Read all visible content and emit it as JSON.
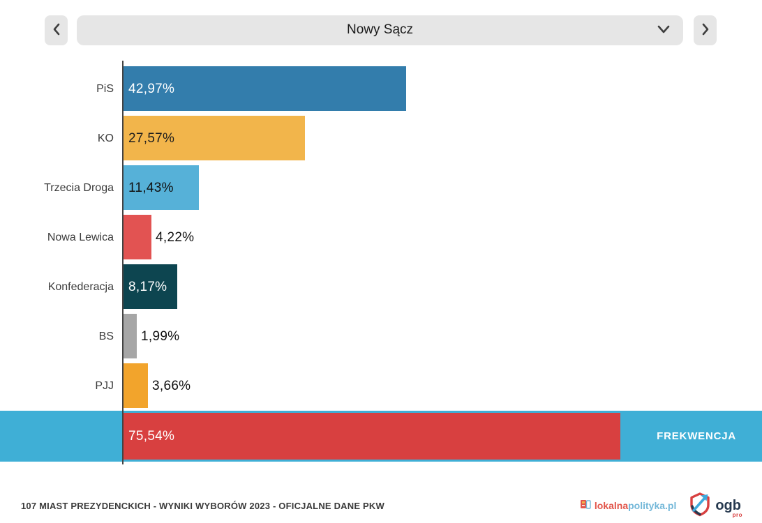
{
  "header": {
    "selected_city": "Nowy Sącz",
    "prev_icon": "chevron-left",
    "next_icon": "chevron-right",
    "dropdown_icon": "chevron-down"
  },
  "chart_data": {
    "type": "bar",
    "orientation": "horizontal",
    "title": "",
    "categories": [
      "PiS",
      "KO",
      "Trzecia Droga",
      "Nowa Lewica",
      "Konfederacja",
      "BS",
      "PJJ"
    ],
    "values": [
      42.97,
      27.57,
      11.43,
      4.22,
      8.17,
      1.99,
      3.66
    ],
    "value_labels": [
      "42,97%",
      "27,57%",
      "11,43%",
      "4,22%",
      "8,17%",
      "1,99%",
      "3,66%"
    ],
    "bar_colors": [
      "#337dac",
      "#f2b54b",
      "#56b1d8",
      "#e25352",
      "#0d4550",
      "#a6a6a6",
      "#f2a42c"
    ],
    "label_inside": [
      true,
      true,
      true,
      false,
      true,
      false,
      false
    ],
    "label_colors": [
      "#ffffff",
      "#1e1e1e",
      "#111111",
      "#111111",
      "#ffffff",
      "#111111",
      "#111111"
    ],
    "xlim": [
      0,
      97
    ],
    "grid": false,
    "legend": "none",
    "turnout": {
      "label": "FREKWENCJA",
      "value": 75.54,
      "value_label": "75,54%",
      "band_color": "#3fafd6",
      "bar_color": "#d84040"
    }
  },
  "footer": {
    "caption": "107 MIAST PREZYDENCKICH - WYNIKI WYBORÓW 2023 - OFICJALNE DANE PKW",
    "lokalnapolityka": {
      "part1": "lokalna",
      "part2": "polityka.pl"
    },
    "ogb": {
      "name": "ogb",
      "sub": "pro"
    }
  }
}
